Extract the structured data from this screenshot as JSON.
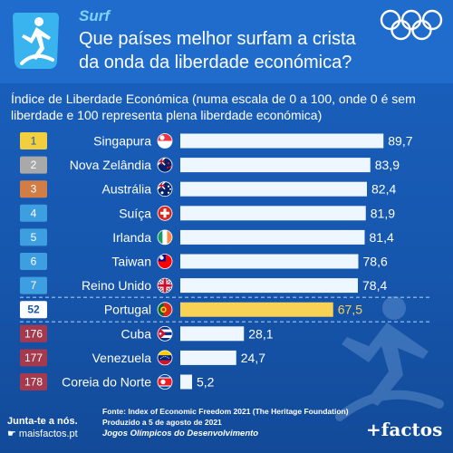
{
  "header": {
    "sport": "Surf",
    "title": "Que países melhor surfam a crista da onda da liberdade económica?",
    "icon": "surfer-icon",
    "rings_icon": "olympic-rings-icon"
  },
  "subtitle": "Índice de Liberdade Económica (numa escala de 0 a 100, onde 0 é sem liberdade e 100 representa plena liberdade económica)",
  "chart_data": {
    "type": "bar",
    "title": "",
    "xlabel": "",
    "ylabel": "",
    "xlim": [
      0,
      100
    ],
    "grid": false,
    "categories": [
      "Singapura",
      "Nova Zelândia",
      "Austrália",
      "Suíça",
      "Irlanda",
      "Taiwan",
      "Reino Unido",
      "Portugal",
      "Cuba",
      "Venezuela",
      "Coreia do Norte"
    ],
    "values": [
      89.7,
      83.9,
      82.4,
      81.9,
      81.4,
      78.6,
      78.4,
      67.5,
      28.1,
      24.7,
      5.2
    ],
    "value_labels": [
      "89,7",
      "83,9",
      "82,4",
      "81,9",
      "81,4",
      "78,6",
      "78,4",
      "67,5",
      "28,1",
      "24,7",
      "5,2"
    ],
    "ranks": [
      "1",
      "2",
      "3",
      "4",
      "5",
      "6",
      "7",
      "52",
      "176",
      "177",
      "178"
    ],
    "flags": [
      "singapore-flag-icon",
      "new-zealand-flag-icon",
      "australia-flag-icon",
      "switzerland-flag-icon",
      "ireland-flag-icon",
      "taiwan-flag-icon",
      "united-kingdom-flag-icon",
      "portugal-flag-icon",
      "cuba-flag-icon",
      "venezuela-flag-icon",
      "north-korea-flag-icon"
    ],
    "highlight": "Portugal",
    "colors": {
      "gold": "#f2cf3f",
      "silver": "#a9a9a9",
      "bronze": "#d07d46",
      "top": "#3d9ee0",
      "portugal_rank": "#ffffff",
      "bottom": "#a53a4e",
      "bar": "#eef6ff",
      "bar_highlight": "#f7d254"
    }
  },
  "footer": {
    "join": "Junta-te a nós.",
    "site": "maisfactos.pt",
    "source": "Fonte: Index of Economic Freedom 2021 (The Heritage Foundation)",
    "produced": "Produzido a 5 de agosto de 2021",
    "series": "Jogos Olímpicos do Desenvolvimento",
    "brand": "+factos"
  }
}
